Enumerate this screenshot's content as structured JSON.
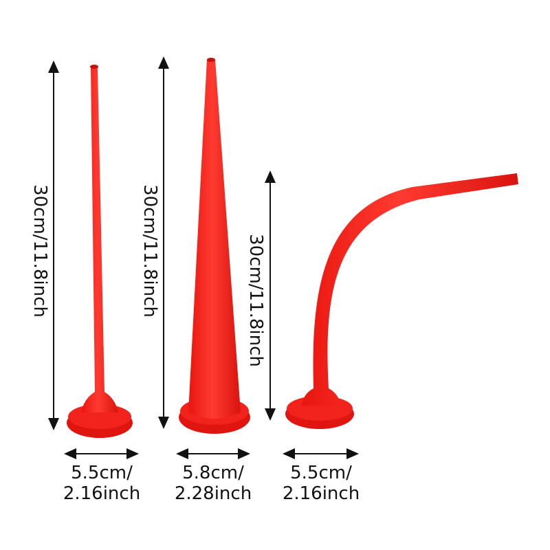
{
  "colors": {
    "nozzle": "#f2221c",
    "nozzle_shade": "#d9140f",
    "arrow": "#111111"
  },
  "nozzles": [
    {
      "height_label": "30cm/11.8inch",
      "width_label_line1": "5.5cm/",
      "width_label_line2": "2.16inch",
      "shape": "straight-thin"
    },
    {
      "height_label": "30cm/11.8inch",
      "width_label_line1": "5.8cm/",
      "width_label_line2": "2.28inch",
      "shape": "straight-wide"
    },
    {
      "height_label": "30cm/11.8inch",
      "width_label_line1": "5.5cm/",
      "width_label_line2": "2.16inch",
      "shape": "curved"
    }
  ]
}
